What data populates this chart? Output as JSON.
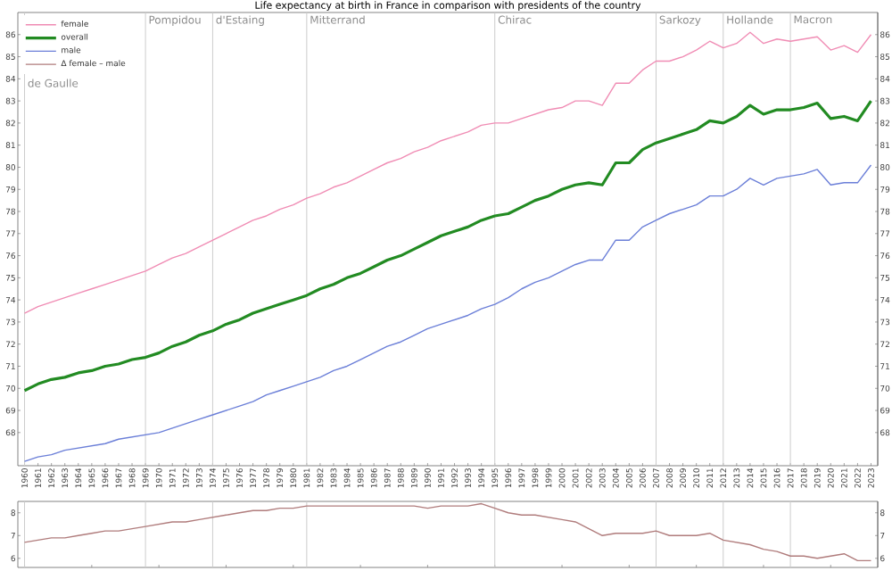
{
  "chart_data": [
    {
      "type": "line",
      "title": "Life expectancy at birth in France in comparison with presidents of the country",
      "x": [
        1960,
        1961,
        1962,
        1963,
        1964,
        1965,
        1966,
        1967,
        1968,
        1969,
        1970,
        1971,
        1972,
        1973,
        1974,
        1975,
        1976,
        1977,
        1978,
        1979,
        1980,
        1981,
        1982,
        1983,
        1984,
        1985,
        1986,
        1987,
        1988,
        1989,
        1990,
        1991,
        1992,
        1993,
        1994,
        1995,
        1996,
        1997,
        1998,
        1999,
        2000,
        2001,
        2002,
        2003,
        2004,
        2005,
        2006,
        2007,
        2008,
        2009,
        2010,
        2011,
        2012,
        2013,
        2014,
        2015,
        2016,
        2017,
        2018,
        2019,
        2020,
        2021,
        2022,
        2023
      ],
      "series": [
        {
          "name": "female",
          "color": "#f08cb4",
          "values": [
            73.4,
            73.7,
            73.9,
            74.1,
            74.3,
            74.5,
            74.7,
            74.9,
            75.1,
            75.3,
            75.6,
            75.9,
            76.1,
            76.4,
            76.7,
            77.0,
            77.3,
            77.6,
            77.8,
            78.1,
            78.3,
            78.6,
            78.8,
            79.1,
            79.3,
            79.6,
            79.9,
            80.2,
            80.4,
            80.7,
            80.9,
            81.2,
            81.4,
            81.6,
            81.9,
            82.0,
            82.0,
            82.2,
            82.4,
            82.6,
            82.7,
            83.0,
            83.0,
            82.8,
            83.8,
            83.8,
            84.4,
            84.8,
            84.8,
            85.0,
            85.3,
            85.7,
            85.4,
            85.6,
            86.1,
            85.6,
            85.8,
            85.7,
            85.8,
            85.9,
            85.3,
            85.5,
            85.2,
            86.0
          ]
        },
        {
          "name": "overall",
          "color": "#228b22",
          "values": [
            69.9,
            70.2,
            70.4,
            70.5,
            70.7,
            70.8,
            71.0,
            71.1,
            71.3,
            71.4,
            71.6,
            71.9,
            72.1,
            72.4,
            72.6,
            72.9,
            73.1,
            73.4,
            73.6,
            73.8,
            74.0,
            74.2,
            74.5,
            74.7,
            75.0,
            75.2,
            75.5,
            75.8,
            76.0,
            76.3,
            76.6,
            76.9,
            77.1,
            77.3,
            77.6,
            77.8,
            77.9,
            78.2,
            78.5,
            78.7,
            79.0,
            79.2,
            79.3,
            79.2,
            80.2,
            80.2,
            80.8,
            81.1,
            81.3,
            81.5,
            81.7,
            82.1,
            82.0,
            82.3,
            82.8,
            82.4,
            82.6,
            82.6,
            82.7,
            82.9,
            82.2,
            82.3,
            82.1,
            83.0
          ]
        },
        {
          "name": "male",
          "color": "#6b7fd8",
          "values": [
            66.7,
            66.9,
            67.0,
            67.2,
            67.3,
            67.4,
            67.5,
            67.7,
            67.8,
            67.9,
            68.0,
            68.2,
            68.4,
            68.6,
            68.8,
            69.0,
            69.2,
            69.4,
            69.7,
            69.9,
            70.1,
            70.3,
            70.5,
            70.8,
            71.0,
            71.3,
            71.6,
            71.9,
            72.1,
            72.4,
            72.7,
            72.9,
            73.1,
            73.3,
            73.6,
            73.8,
            74.1,
            74.5,
            74.8,
            75.0,
            75.3,
            75.6,
            75.8,
            75.8,
            76.7,
            76.7,
            77.3,
            77.6,
            77.9,
            78.1,
            78.3,
            78.7,
            78.7,
            79.0,
            79.5,
            79.2,
            79.5,
            79.6,
            79.7,
            79.9,
            79.2,
            79.3,
            79.3,
            80.1
          ]
        }
      ],
      "xlim": [
        1959.5,
        2023.5
      ],
      "xticks": [
        1960,
        1961,
        1962,
        1963,
        1964,
        1965,
        1966,
        1967,
        1968,
        1969,
        1970,
        1971,
        1972,
        1973,
        1974,
        1975,
        1976,
        1977,
        1978,
        1979,
        1980,
        1981,
        1982,
        1983,
        1984,
        1985,
        1986,
        1987,
        1988,
        1989,
        1990,
        1991,
        1992,
        1993,
        1994,
        1995,
        1996,
        1997,
        1998,
        1999,
        2000,
        2001,
        2002,
        2003,
        2004,
        2005,
        2006,
        2007,
        2008,
        2009,
        2010,
        2011,
        2012,
        2013,
        2014,
        2015,
        2016,
        2017,
        2018,
        2019,
        2020,
        2021,
        2022,
        2023
      ],
      "ylim": [
        66.5,
        87
      ],
      "yticks": [
        68,
        69,
        70,
        71,
        72,
        73,
        74,
        75,
        76,
        77,
        78,
        79,
        80,
        81,
        82,
        83,
        84,
        85,
        86
      ],
      "y2lim": [
        66.5,
        87
      ],
      "y2ticks": [
        68,
        69,
        70,
        71,
        72,
        73,
        74,
        75,
        76,
        77,
        78,
        79,
        80,
        81,
        82,
        83,
        84,
        85,
        86
      ],
      "legend": "top left",
      "ref_lines": [
        {
          "axis": "x",
          "value": 1960,
          "label": "de Gaulle",
          "color": "#cccccc"
        },
        {
          "axis": "x",
          "value": 1969,
          "label": "Pompidou",
          "color": "#cccccc"
        },
        {
          "axis": "x",
          "value": 1974,
          "label": "d'Estaing",
          "color": "#cccccc"
        },
        {
          "axis": "x",
          "value": 1981,
          "label": "Mitterrand",
          "color": "#cccccc"
        },
        {
          "axis": "x",
          "value": 1995,
          "label": "Chirac",
          "color": "#cccccc"
        },
        {
          "axis": "x",
          "value": 2007,
          "label": "Sarkozy",
          "color": "#cccccc"
        },
        {
          "axis": "x",
          "value": 2012,
          "label": "Hollande",
          "color": "#cccccc"
        },
        {
          "axis": "x",
          "value": 2017,
          "label": "Macron",
          "color": "#cccccc"
        }
      ]
    },
    {
      "type": "line",
      "x": [
        1960,
        1961,
        1962,
        1963,
        1964,
        1965,
        1966,
        1967,
        1968,
        1969,
        1970,
        1971,
        1972,
        1973,
        1974,
        1975,
        1976,
        1977,
        1978,
        1979,
        1980,
        1981,
        1982,
        1983,
        1984,
        1985,
        1986,
        1987,
        1988,
        1989,
        1990,
        1991,
        1992,
        1993,
        1994,
        1995,
        1996,
        1997,
        1998,
        1999,
        2000,
        2001,
        2002,
        2003,
        2004,
        2005,
        2006,
        2007,
        2008,
        2009,
        2010,
        2011,
        2012,
        2013,
        2014,
        2015,
        2016,
        2017,
        2018,
        2019,
        2020,
        2021,
        2022,
        2023
      ],
      "series": [
        {
          "name": "Δ female – male",
          "color": "#b07c7c",
          "values": [
            6.7,
            6.8,
            6.9,
            6.9,
            7.0,
            7.1,
            7.2,
            7.2,
            7.3,
            7.4,
            7.5,
            7.6,
            7.6,
            7.7,
            7.8,
            7.9,
            8.0,
            8.1,
            8.1,
            8.2,
            8.2,
            8.3,
            8.3,
            8.3,
            8.3,
            8.3,
            8.3,
            8.3,
            8.3,
            8.3,
            8.2,
            8.3,
            8.3,
            8.3,
            8.4,
            8.2,
            8.0,
            7.9,
            7.9,
            7.8,
            7.7,
            7.6,
            7.3,
            7.0,
            7.1,
            7.1,
            7.1,
            7.2,
            7.0,
            7.0,
            7.0,
            7.1,
            6.8,
            6.7,
            6.6,
            6.4,
            6.3,
            6.1,
            6.1,
            6.0,
            6.1,
            6.2,
            5.9,
            5.9
          ]
        }
      ],
      "xlim": [
        1959.5,
        2023.5
      ],
      "ylim": [
        5.6,
        8.5
      ],
      "yticks": [
        6,
        7,
        8
      ],
      "y2lim": [
        5.6,
        8.5
      ],
      "y2ticks": [
        6,
        7,
        8
      ],
      "tick_labels": "y",
      "ref_lines": [
        {
          "axis": "x",
          "value": 1960,
          "color": "#cccccc"
        },
        {
          "axis": "x",
          "value": 1969,
          "color": "#cccccc"
        },
        {
          "axis": "x",
          "value": 1974,
          "color": "#cccccc"
        },
        {
          "axis": "x",
          "value": 1981,
          "color": "#cccccc"
        },
        {
          "axis": "x",
          "value": 1995,
          "color": "#cccccc"
        },
        {
          "axis": "x",
          "value": 2007,
          "color": "#cccccc"
        },
        {
          "axis": "x",
          "value": 2012,
          "color": "#cccccc"
        },
        {
          "axis": "x",
          "value": 2017,
          "color": "#cccccc"
        }
      ]
    }
  ]
}
